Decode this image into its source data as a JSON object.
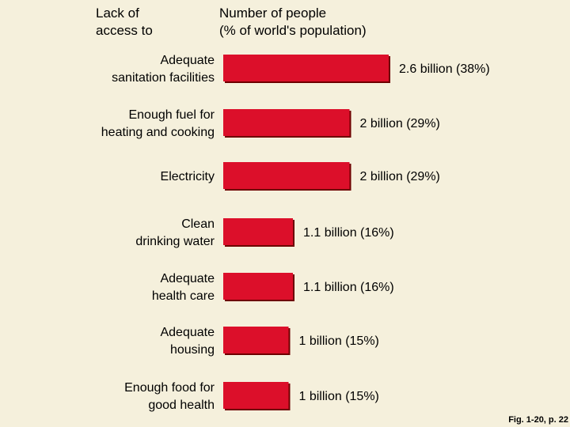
{
  "chart_data": {
    "type": "bar",
    "orientation": "horizontal",
    "header_left": "Lack of\naccess to",
    "header_right": "Number of people\n(% of world's population)",
    "categories": [
      [
        "Adequate",
        "sanitation facilities"
      ],
      [
        "Enough fuel for",
        "heating and cooking"
      ],
      [
        "Electricity"
      ],
      [
        "Clean",
        "drinking water"
      ],
      [
        "Adequate",
        "health care"
      ],
      [
        "Adequate",
        "housing"
      ],
      [
        "Enough food for",
        "good health"
      ]
    ],
    "values": [
      38,
      29,
      29,
      16,
      16,
      15,
      15
    ],
    "value_unit": "% of world's population",
    "data_labels": [
      "2.6 billion (38%)",
      "2 billion (29%)",
      "2 billion (29%)",
      "1.1 billion (16%)",
      "1.1 billion (16%)",
      "1 billion (15%)",
      "1 billion (15%)"
    ],
    "bar_color": "#dc0f2a",
    "bar_shadow_color": "#6e0000",
    "axes_visible": false,
    "grid": false,
    "legend": "none"
  },
  "caption": "Fig. 1-20, p. 22",
  "colors": {
    "background": "#f5f0dc"
  }
}
